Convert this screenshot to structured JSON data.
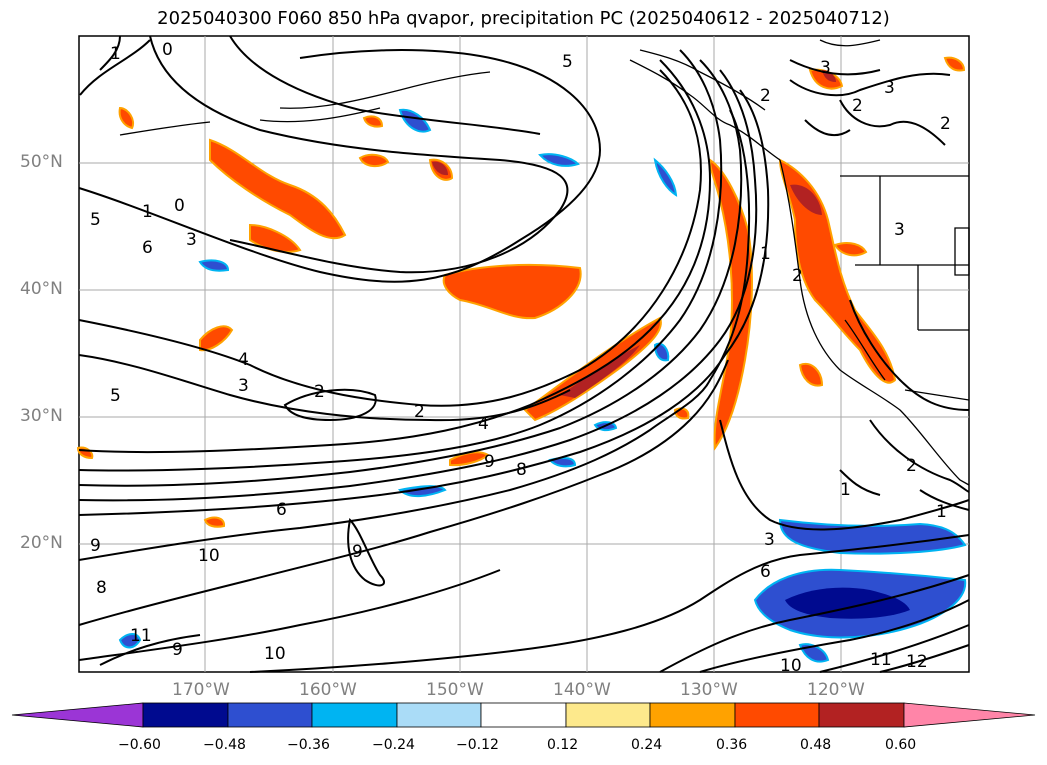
{
  "title": "2025040300 F060 850 hPa qvapor, precipitation PC (2025040612 - 2025040712)",
  "lat_labels": [
    "50°N",
    "40°N",
    "30°N",
    "20°N"
  ],
  "lon_labels": [
    "170°W",
    "160°W",
    "150°W",
    "140°W",
    "130°W",
    "120°W"
  ],
  "contour_labels": [
    "5",
    "1",
    "0",
    "5",
    "1",
    "0",
    "6",
    "2",
    "3",
    "2",
    "3",
    "4",
    "5",
    "2",
    "2",
    "4",
    "9",
    "8",
    "6",
    "9",
    "10",
    "9",
    "8",
    "11",
    "9",
    "10",
    "1",
    "3",
    "6",
    "10",
    "11",
    "12",
    "3",
    "2",
    "3",
    "2",
    "3",
    "2",
    "1",
    "1"
  ],
  "colorbar": {
    "ticks": [
      "−0.60",
      "−0.48",
      "−0.36",
      "−0.24",
      "−0.12",
      "0.12",
      "0.24",
      "0.36",
      "0.48",
      "0.60"
    ],
    "colors": [
      "#9b35d6",
      "#000a8f",
      "#2e4fd0",
      "#00b4f2",
      "#aadcf7",
      "#ffffff",
      "#fde98c",
      "#ffa200",
      "#ff4a00",
      "#b22222",
      "#ff85a8"
    ]
  },
  "legend_colors": {
    "land_outline": "#000000",
    "grid": "#aaaaaa",
    "positive_fill": "#ff4a00",
    "negative_fill": "#2e4fd0"
  }
}
